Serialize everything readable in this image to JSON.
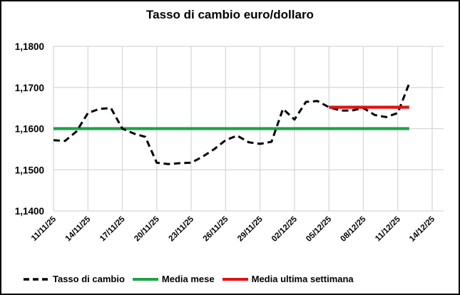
{
  "chart": {
    "title": "Tasso di cambio euro/dollaro"
  },
  "chart_data": {
    "type": "line",
    "title": "Tasso di cambio euro/dollaro",
    "xlabel": "",
    "ylabel": "",
    "grid": true,
    "legend_position": "bottom",
    "ylim": [
      1.14,
      1.18
    ],
    "y_tick_labels": [
      "1,1400",
      "1,1500",
      "1,1600",
      "1,1700",
      "1,1800"
    ],
    "x_tick_labels": [
      "11/11/25",
      "14/11/25",
      "17/11/25",
      "20/11/25",
      "23/11/25",
      "26/11/25",
      "29/11/25",
      "02/12/25",
      "05/12/25",
      "08/12/25",
      "11/12/25",
      "14/12/25"
    ],
    "x_tick_step_days": 3,
    "x_axis_span_days": 34,
    "series": [
      {
        "name": "Tasso di cambio",
        "kind": "daily",
        "color": "#000000",
        "line_style": "dashed",
        "dates": [
          "11/11/25",
          "12/11/25",
          "13/11/25",
          "14/11/25",
          "15/11/25",
          "16/11/25",
          "17/11/25",
          "18/11/25",
          "19/11/25",
          "20/11/25",
          "21/11/25",
          "22/11/25",
          "23/11/25",
          "24/11/25",
          "25/11/25",
          "26/11/25",
          "27/11/25",
          "28/11/25",
          "29/11/25",
          "30/11/25",
          "01/12/25",
          "02/12/25",
          "03/12/25",
          "04/12/25",
          "05/12/25",
          "06/12/25",
          "07/12/25",
          "08/12/25",
          "09/12/25",
          "10/12/25",
          "11/12/25",
          "12/12/25"
        ],
        "values": [
          1.1572,
          1.157,
          1.1593,
          1.1638,
          1.1648,
          1.165,
          1.16,
          1.1588,
          1.158,
          1.1517,
          1.1514,
          1.1516,
          1.1517,
          1.1532,
          1.155,
          1.1572,
          1.1583,
          1.1567,
          1.1563,
          1.1568,
          1.1648,
          1.1622,
          1.1665,
          1.1667,
          1.1652,
          1.1644,
          1.1644,
          1.165,
          1.1633,
          1.1628,
          1.1638,
          1.171
        ]
      },
      {
        "name": "Media mese",
        "kind": "constant",
        "color": "#1fa24a",
        "line_style": "solid",
        "value": 1.16,
        "start_date": "11/11/25",
        "end_date": "12/12/25",
        "start_day": 0,
        "end_day": 31
      },
      {
        "name": "Media ultima settimana",
        "kind": "constant",
        "color": "#e01212",
        "line_style": "solid",
        "value": 1.1652,
        "start_date": "05/12/25",
        "end_date": "12/12/25",
        "start_day": 24,
        "end_day": 31
      }
    ]
  }
}
